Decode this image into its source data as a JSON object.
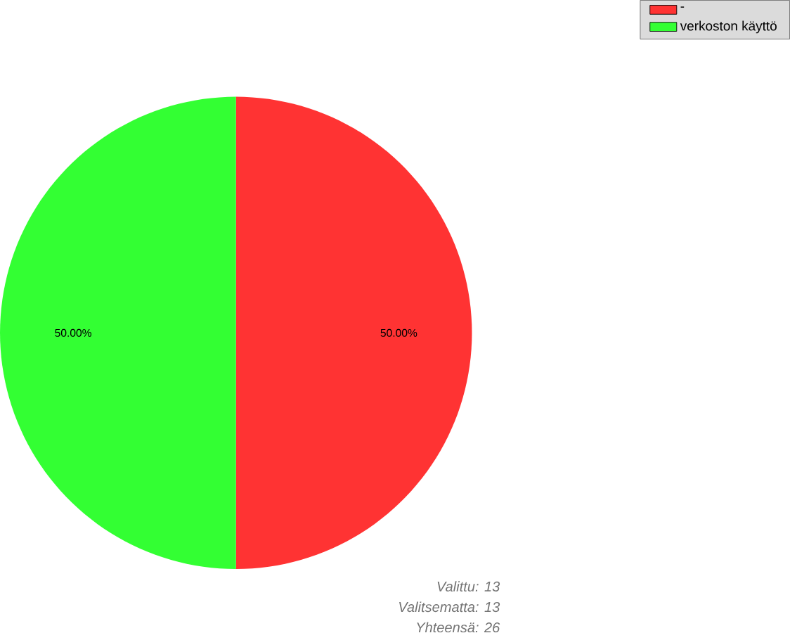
{
  "chart_data": {
    "type": "pie",
    "categories": [
      "-",
      "verkoston käyttö"
    ],
    "values": [
      50,
      50
    ],
    "colors": [
      "#ff3333",
      "#33ff33"
    ],
    "value_labels": [
      "50.00%",
      "50.00%"
    ],
    "legend": "top right",
    "annotations": [
      "Valittu: 13",
      "Valitsematta: 13",
      "Yhteensä: 26"
    ]
  }
}
